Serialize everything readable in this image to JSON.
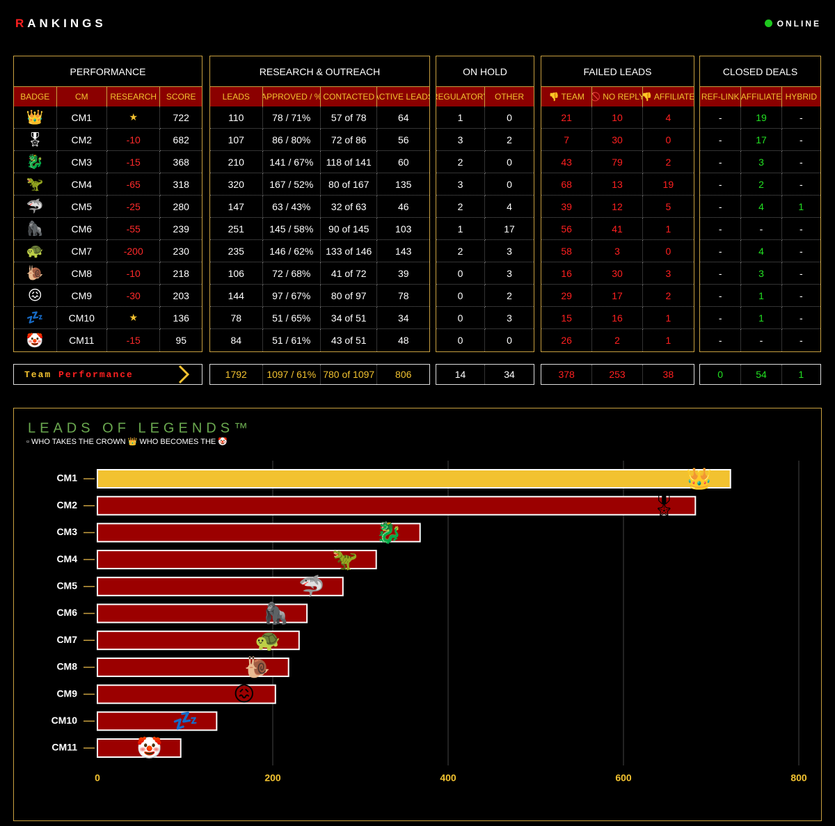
{
  "header": {
    "title": "RANKINGS",
    "status": "ONLINE"
  },
  "team_label": {
    "team": "Team",
    "performance": "Performance"
  },
  "groups": [
    {
      "title": "PERFORMANCE",
      "columns": [
        "BADGE",
        "CM",
        "RESEARCH",
        "SCORE"
      ],
      "column_colors": [
        "#ffffff",
        "#ffffff",
        "#ff2a2a",
        "#ffffff"
      ],
      "symbol_color": "#f2c230",
      "rows": [
        [
          "👑",
          "CM1",
          "★",
          722
        ],
        [
          "🎖",
          "CM2",
          -10,
          682
        ],
        [
          "🐉",
          "CM3",
          -15,
          368
        ],
        [
          "🦖",
          "CM4",
          -65,
          318
        ],
        [
          "🦈",
          "CM5",
          -25,
          280
        ],
        [
          "🦍",
          "CM6",
          -55,
          239
        ],
        [
          "🐢",
          "CM7",
          -200,
          230
        ],
        [
          "🐌",
          "CM8",
          -10,
          218
        ],
        [
          "😖",
          "CM9",
          -30,
          203
        ],
        [
          "💤",
          "CM10",
          "★",
          136
        ],
        [
          "🤡",
          "CM11",
          -15,
          95
        ]
      ]
    },
    {
      "title": "RESEARCH & OUTREACH",
      "columns": [
        "LEADS",
        "APPROVED / %",
        "CONTACTED",
        "ACTIVE LEADS"
      ],
      "column_colors": [
        "#ffffff",
        "#ffffff",
        "#ffffff",
        "#ffffff"
      ],
      "total_color": "#f2c230",
      "rows": [
        [
          110,
          "78 / 71%",
          "57 of 78",
          64
        ],
        [
          107,
          "86 / 80%",
          "72 of 86",
          56
        ],
        [
          210,
          "141 / 67%",
          "118 of 141",
          60
        ],
        [
          320,
          "167 / 52%",
          "80 of 167",
          135
        ],
        [
          147,
          "63 / 43%",
          "32 of 63",
          46
        ],
        [
          251,
          "145 / 58%",
          "90 of 145",
          103
        ],
        [
          235,
          "146 / 62%",
          "133 of 146",
          143
        ],
        [
          106,
          "72 / 68%",
          "41 of 72",
          39
        ],
        [
          144,
          "97 / 67%",
          "80 of 97",
          78
        ],
        [
          78,
          "51 / 65%",
          "34 of 51",
          34
        ],
        [
          84,
          "51 / 61%",
          "43 of 51",
          48
        ]
      ],
      "totals": [
        1792,
        "1097 / 61%",
        "780 of 1097",
        806
      ]
    },
    {
      "title": "ON HOLD",
      "columns": [
        "REGULATORY",
        "OTHER"
      ],
      "column_colors": [
        "#ffffff",
        "#ffffff"
      ],
      "total_color": "#ffffff",
      "rows": [
        [
          1,
          0
        ],
        [
          3,
          2
        ],
        [
          2,
          0
        ],
        [
          3,
          0
        ],
        [
          2,
          4
        ],
        [
          1,
          17
        ],
        [
          2,
          3
        ],
        [
          0,
          3
        ],
        [
          0,
          2
        ],
        [
          0,
          3
        ],
        [
          0,
          0
        ]
      ],
      "totals": [
        14,
        34
      ]
    },
    {
      "title": "FAILED LEADS",
      "columns": [
        "👎 TEAM",
        "🚫 NO REPLY",
        "👎 AFFILIATE"
      ],
      "column_colors": [
        "#ff2020",
        "#ff2020",
        "#ff2020"
      ],
      "total_color": "#ff2020",
      "rows": [
        [
          21,
          10,
          4
        ],
        [
          7,
          30,
          0
        ],
        [
          43,
          79,
          2
        ],
        [
          68,
          13,
          19
        ],
        [
          39,
          12,
          5
        ],
        [
          56,
          41,
          1
        ],
        [
          58,
          3,
          0
        ],
        [
          16,
          30,
          3
        ],
        [
          29,
          17,
          2
        ],
        [
          15,
          16,
          1
        ],
        [
          26,
          2,
          1
        ]
      ],
      "totals": [
        378,
        253,
        38
      ]
    },
    {
      "title": "CLOSED DEALS",
      "columns": [
        "REF-LINK",
        "AFFILIATE",
        "HYBRID"
      ],
      "column_colors": [
        "#22e022",
        "#22e022",
        "#22e022"
      ],
      "total_color": "#22e022",
      "rows": [
        [
          "-",
          19,
          "-"
        ],
        [
          "-",
          17,
          "-"
        ],
        [
          "-",
          3,
          "-"
        ],
        [
          "-",
          2,
          "-"
        ],
        [
          "-",
          4,
          1
        ],
        [
          "-",
          "-",
          "-"
        ],
        [
          "-",
          4,
          "-"
        ],
        [
          "-",
          3,
          "-"
        ],
        [
          "-",
          1,
          "-"
        ],
        [
          "-",
          1,
          "-"
        ],
        [
          "-",
          "-",
          "-"
        ]
      ],
      "totals": [
        0,
        54,
        1
      ]
    }
  ],
  "chart_data": {
    "type": "bar",
    "orientation": "horizontal",
    "title": "LEADS OF LEGENDS™",
    "subtitle": "▫ WHO TAKES THE CROWN 👑   WHO BECOMES THE 🤡",
    "categories": [
      "CM1",
      "CM2",
      "CM3",
      "CM4",
      "CM5",
      "CM6",
      "CM7",
      "CM8",
      "CM9",
      "CM10",
      "CM11"
    ],
    "values": [
      722,
      682,
      368,
      318,
      280,
      239,
      230,
      218,
      203,
      136,
      95
    ],
    "colors": [
      "#f2c230",
      "#9b0000",
      "#9b0000",
      "#9b0000",
      "#9b0000",
      "#9b0000",
      "#9b0000",
      "#9b0000",
      "#9b0000",
      "#9b0000",
      "#9b0000"
    ],
    "xlim": [
      0,
      800
    ],
    "xticks": [
      0,
      200,
      400,
      600,
      800
    ],
    "grid": true
  }
}
